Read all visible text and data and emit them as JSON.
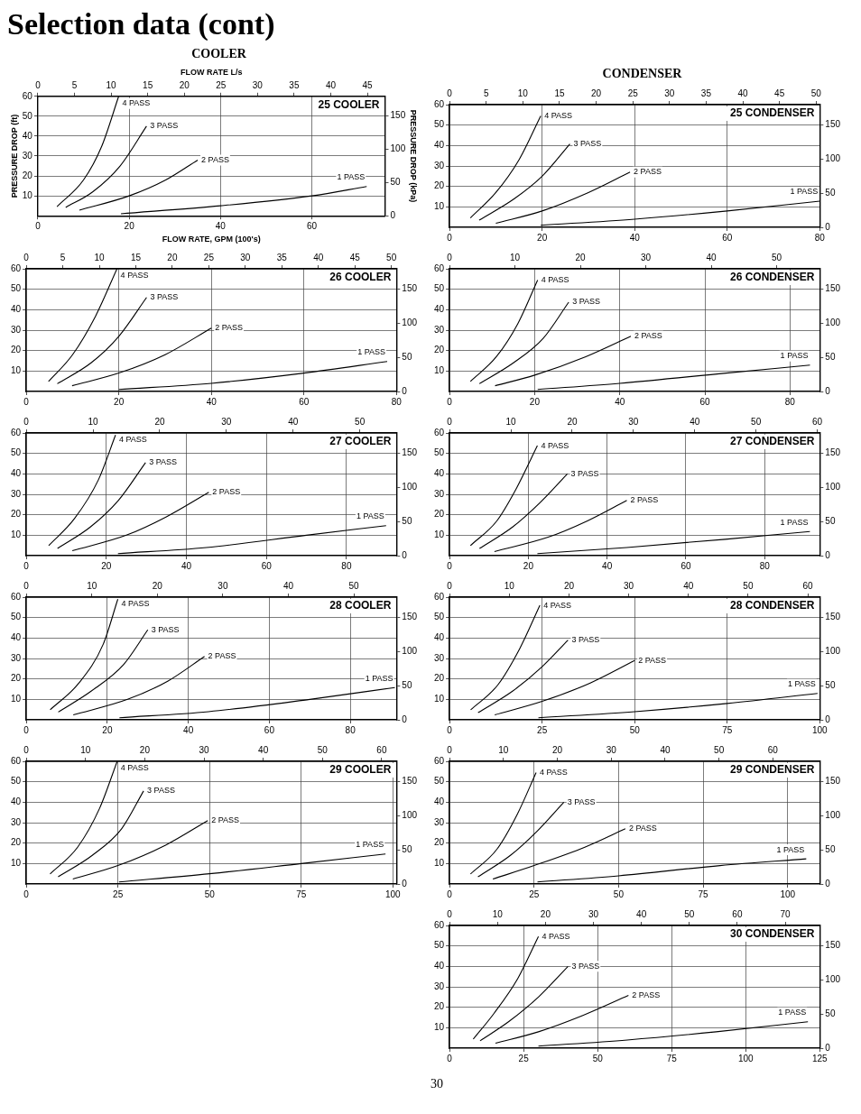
{
  "chart_data": [
    {
      "type": "line",
      "title": "25 COOLER",
      "annotations": [
        "Selection data (cont)",
        "COOLER"
      ],
      "xlabel": "FLOW RATE, GPM (100's)",
      "x2label": "FLOW RATE L/s",
      "ylabel": "PRESSURE DROP (ft)",
      "y2label": "PRESSURE DROP (kPa)",
      "xlim": [
        0,
        76
      ],
      "xticks": [
        0,
        20,
        40,
        60
      ],
      "x2lim": [
        0,
        47.4
      ],
      "x2ticks": [
        0,
        5,
        10,
        15,
        20,
        25,
        30,
        35,
        40,
        45
      ],
      "ylim": [
        0,
        60
      ],
      "yticks": [
        10,
        20,
        30,
        40,
        50,
        60
      ],
      "y2lim": [
        0,
        179
      ],
      "y2ticks": [
        0,
        50,
        100,
        150
      ],
      "grid": true,
      "series": [
        {
          "name": "4 PASS",
          "color": "#000000",
          "x": [
            4.2,
            10,
            14,
            17.7
          ],
          "values": [
            4.6,
            18,
            35,
            60
          ]
        },
        {
          "name": "3 PASS",
          "color": "#000000",
          "x": [
            6.1,
            12,
            18,
            23.8
          ],
          "values": [
            4.2,
            12,
            25,
            45
          ]
        },
        {
          "name": "2 PASS",
          "color": "#000000",
          "x": [
            9.1,
            20,
            28,
            35
          ],
          "values": [
            2.8,
            10,
            18,
            28
          ]
        },
        {
          "name": "1 PASS",
          "color": "#000000",
          "x": [
            18.2,
            40,
            60,
            72
          ],
          "values": [
            1,
            5,
            10,
            14.7
          ]
        }
      ]
    },
    {
      "type": "line",
      "title": "25 CONDENSER",
      "annotations": [
        "CONDENSER"
      ],
      "xlim": [
        0,
        80
      ],
      "xticks": [
        0,
        20,
        40,
        60,
        80
      ],
      "x2lim": [
        0,
        50.5
      ],
      "x2ticks": [
        0,
        5,
        10,
        15,
        20,
        25,
        30,
        35,
        40,
        45,
        50
      ],
      "ylim": [
        0,
        60
      ],
      "yticks": [
        10,
        20,
        30,
        40,
        50,
        60
      ],
      "y2lim": [
        0,
        179
      ],
      "y2ticks": [
        0,
        50,
        100,
        150
      ],
      "grid": true,
      "series": [
        {
          "name": "4 PASS",
          "color": "#000000",
          "x": [
            4.5,
            10,
            15,
            19.7
          ],
          "values": [
            4.6,
            17,
            33,
            54.5
          ]
        },
        {
          "name": "3 PASS",
          "color": "#000000",
          "x": [
            6.4,
            14,
            20,
            26
          ],
          "values": [
            3.5,
            14,
            25,
            40.8
          ]
        },
        {
          "name": "2 PASS",
          "color": "#000000",
          "x": [
            10,
            20,
            30,
            39
          ],
          "values": [
            2,
            8,
            17,
            27
          ]
        },
        {
          "name": "1 PASS",
          "color": "#000000",
          "x": [
            19.7,
            40,
            60,
            80
          ],
          "values": [
            1,
            4,
            8,
            12.8
          ]
        }
      ]
    },
    {
      "type": "line",
      "title": "26 COOLER",
      "xlim": [
        0,
        80
      ],
      "xticks": [
        0,
        20,
        40,
        60,
        80
      ],
      "x2lim": [
        0,
        50.7
      ],
      "x2ticks": [
        0,
        5,
        10,
        15,
        20,
        25,
        30,
        35,
        40,
        45,
        50
      ],
      "ylim": [
        0,
        60
      ],
      "yticks": [
        10,
        20,
        30,
        40,
        50,
        60
      ],
      "y2lim": [
        0,
        179
      ],
      "y2ticks": [
        0,
        50,
        100,
        150
      ],
      "grid": true,
      "series": [
        {
          "name": "4 PASS",
          "color": "#000000",
          "x": [
            4.8,
            10,
            15,
            19.6
          ],
          "values": [
            4.9,
            18,
            37,
            60
          ]
        },
        {
          "name": "3 PASS",
          "color": "#000000",
          "x": [
            6.7,
            14,
            20,
            26
          ],
          "values": [
            3.8,
            14,
            27,
            46
          ]
        },
        {
          "name": "2 PASS",
          "color": "#000000",
          "x": [
            9.9,
            20,
            30,
            40
          ],
          "values": [
            2.8,
            9,
            18,
            31
          ]
        },
        {
          "name": "1 PASS",
          "color": "#000000",
          "x": [
            20,
            40,
            60,
            78
          ],
          "values": [
            1,
            4,
            9,
            14.7
          ]
        }
      ]
    },
    {
      "type": "line",
      "title": "26 CONDENSER",
      "xlim": [
        0,
        87
      ],
      "xticks": [
        0,
        20,
        40,
        60,
        80
      ],
      "x2lim": [
        0,
        56.6
      ],
      "x2ticks": [
        0,
        10,
        20,
        30,
        40,
        50
      ],
      "ylim": [
        0,
        60
      ],
      "yticks": [
        10,
        20,
        30,
        40,
        50,
        60
      ],
      "y2lim": [
        0,
        179
      ],
      "y2ticks": [
        0,
        50,
        100,
        150
      ],
      "grid": true,
      "series": [
        {
          "name": "4 PASS",
          "color": "#000000",
          "x": [
            4.9,
            11,
            16,
            20.7
          ],
          "values": [
            4.9,
            17,
            33,
            54.5
          ]
        },
        {
          "name": "3 PASS",
          "color": "#000000",
          "x": [
            7,
            15,
            22,
            28
          ],
          "values": [
            3.8,
            14,
            26,
            43.7
          ]
        },
        {
          "name": "2 PASS",
          "color": "#000000",
          "x": [
            10.7,
            20,
            32,
            42.6
          ],
          "values": [
            2.8,
            8,
            17,
            27
          ]
        },
        {
          "name": "1 PASS",
          "color": "#000000",
          "x": [
            20.7,
            40,
            65,
            84.7
          ],
          "values": [
            1,
            4,
            9,
            12.9
          ]
        }
      ]
    },
    {
      "type": "line",
      "title": "27 COOLER",
      "xlim": [
        0,
        92.5
      ],
      "xticks": [
        0,
        20,
        40,
        60,
        80
      ],
      "x2lim": [
        0,
        55.5
      ],
      "x2ticks": [
        0,
        10,
        20,
        30,
        40,
        50
      ],
      "ylim": [
        0,
        60
      ],
      "yticks": [
        10,
        20,
        30,
        40,
        50,
        60
      ],
      "y2lim": [
        0,
        179
      ],
      "y2ticks": [
        0,
        50,
        100,
        150
      ],
      "grid": true,
      "series": [
        {
          "name": "4 PASS",
          "color": "#000000",
          "x": [
            5.6,
            12,
            18,
            22.3
          ],
          "values": [
            4.9,
            18,
            37,
            59
          ]
        },
        {
          "name": "3 PASS",
          "color": "#000000",
          "x": [
            7.8,
            16,
            23,
            29.8
          ],
          "values": [
            3.5,
            14,
            27,
            45.5
          ]
        },
        {
          "name": "2 PASS",
          "color": "#000000",
          "x": [
            11.5,
            25,
            35,
            45.6
          ],
          "values": [
            2.4,
            10,
            19,
            31
          ]
        },
        {
          "name": "1 PASS",
          "color": "#000000",
          "x": [
            22.9,
            45,
            70,
            89.9
          ],
          "values": [
            1,
            4,
            10,
            14.7
          ]
        }
      ]
    },
    {
      "type": "line",
      "title": "27 CONDENSER",
      "xlim": [
        0,
        94
      ],
      "xticks": [
        0,
        20,
        40,
        60,
        80
      ],
      "x2lim": [
        0,
        60.4
      ],
      "x2ticks": [
        0,
        10,
        20,
        30,
        40,
        50,
        60
      ],
      "ylim": [
        0,
        60
      ],
      "yticks": [
        10,
        20,
        30,
        40,
        50,
        60
      ],
      "y2lim": [
        0,
        179
      ],
      "y2ticks": [
        0,
        50,
        100,
        150
      ],
      "grid": true,
      "series": [
        {
          "name": "4 PASS",
          "color": "#000000",
          "x": [
            5.3,
            12,
            17,
            22.3
          ],
          "values": [
            4.9,
            17,
            33,
            53.8
          ]
        },
        {
          "name": "3 PASS",
          "color": "#000000",
          "x": [
            7.6,
            16,
            23,
            29.9
          ],
          "values": [
            3.5,
            14,
            26,
            40
          ]
        },
        {
          "name": "2 PASS",
          "color": "#000000",
          "x": [
            11.4,
            25,
            35,
            45
          ],
          "values": [
            2,
            9,
            17,
            27
          ]
        },
        {
          "name": "1 PASS",
          "color": "#000000",
          "x": [
            22.3,
            45,
            70,
            91.5
          ],
          "values": [
            1,
            4,
            8,
            11.8
          ]
        }
      ]
    },
    {
      "type": "line",
      "title": "28 COOLER",
      "xlim": [
        0,
        91.4
      ],
      "xticks": [
        0,
        20,
        40,
        60,
        80
      ],
      "x2lim": [
        0,
        56.5
      ],
      "x2ticks": [
        0,
        10,
        20,
        30,
        40,
        50
      ],
      "ylim": [
        0,
        60
      ],
      "yticks": [
        10,
        20,
        30,
        40,
        50,
        60
      ],
      "y2lim": [
        0,
        179
      ],
      "y2ticks": [
        0,
        50,
        100,
        150
      ],
      "grid": true,
      "series": [
        {
          "name": "4 PASS",
          "color": "#000000",
          "x": [
            5.9,
            13,
            19,
            22.6
          ],
          "values": [
            4.9,
            18,
            37,
            59
          ]
        },
        {
          "name": "3 PASS",
          "color": "#000000",
          "x": [
            7.9,
            16,
            24,
            30
          ],
          "values": [
            3.8,
            14,
            27,
            44
          ]
        },
        {
          "name": "2 PASS",
          "color": "#000000",
          "x": [
            11.6,
            25,
            35,
            44
          ],
          "values": [
            2.4,
            10,
            19,
            31
          ]
        },
        {
          "name": "1 PASS",
          "color": "#000000",
          "x": [
            23,
            45,
            70,
            91
          ],
          "values": [
            1,
            4,
            10,
            15.8
          ]
        }
      ]
    },
    {
      "type": "line",
      "title": "28 CONDENSER",
      "xlim": [
        0,
        100
      ],
      "xticks": [
        0,
        25,
        50,
        75,
        100
      ],
      "x2lim": [
        0,
        62
      ],
      "x2ticks": [
        0,
        10,
        20,
        30,
        40,
        50,
        60
      ],
      "ylim": [
        0,
        60
      ],
      "yticks": [
        10,
        20,
        30,
        40,
        50,
        60
      ],
      "y2lim": [
        0,
        179
      ],
      "y2ticks": [
        0,
        50,
        100,
        150
      ],
      "grid": true,
      "series": [
        {
          "name": "4 PASS",
          "color": "#000000",
          "x": [
            5.7,
            13,
            19,
            24.4
          ],
          "values": [
            4.9,
            17,
            35,
            56
          ]
        },
        {
          "name": "3 PASS",
          "color": "#000000",
          "x": [
            7.7,
            17,
            25,
            32
          ],
          "values": [
            3.5,
            14,
            26,
            39
          ]
        },
        {
          "name": "2 PASS",
          "color": "#000000",
          "x": [
            12.2,
            25,
            38,
            50
          ],
          "values": [
            2.4,
            9,
            18,
            29
          ]
        },
        {
          "name": "1 PASS",
          "color": "#000000",
          "x": [
            24,
            50,
            75,
            99.4
          ],
          "values": [
            1,
            4,
            8,
            12.9
          ]
        }
      ]
    },
    {
      "type": "line",
      "title": "29 COOLER",
      "xlim": [
        0,
        101
      ],
      "xticks": [
        0,
        25,
        50,
        75,
        100
      ],
      "x2lim": [
        0,
        62.5
      ],
      "x2ticks": [
        0,
        10,
        20,
        30,
        40,
        50,
        60
      ],
      "ylim": [
        0,
        60
      ],
      "yticks": [
        10,
        20,
        30,
        40,
        50,
        60
      ],
      "y2lim": [
        0,
        179
      ],
      "y2ticks": [
        0,
        50,
        100,
        150
      ],
      "grid": true,
      "series": [
        {
          "name": "4 PASS",
          "color": "#000000",
          "x": [
            6.5,
            14,
            20,
            24.8
          ],
          "values": [
            4.9,
            18,
            37,
            60
          ]
        },
        {
          "name": "3 PASS",
          "color": "#000000",
          "x": [
            8.7,
            18,
            26,
            32
          ],
          "values": [
            3.5,
            14,
            27,
            45.5
          ]
        },
        {
          "name": "2 PASS",
          "color": "#000000",
          "x": [
            12.7,
            25,
            38,
            49.5
          ],
          "values": [
            2.4,
            9,
            19,
            31
          ]
        },
        {
          "name": "1 PASS",
          "color": "#000000",
          "x": [
            25.3,
            50,
            75,
            98
          ],
          "values": [
            1,
            5,
            10,
            14.7
          ]
        }
      ]
    },
    {
      "type": "line",
      "title": "29 CONDENSER",
      "xlim": [
        0,
        109.5
      ],
      "xticks": [
        0,
        25,
        50,
        75,
        100
      ],
      "x2lim": [
        0,
        68.7
      ],
      "x2ticks": [
        0,
        10,
        20,
        30,
        40,
        50,
        60
      ],
      "ylim": [
        0,
        60
      ],
      "yticks": [
        10,
        20,
        30,
        40,
        50,
        60
      ],
      "y2lim": [
        0,
        179
      ],
      "y2ticks": [
        0,
        50,
        100,
        150
      ],
      "grid": true,
      "series": [
        {
          "name": "4 PASS",
          "color": "#000000",
          "x": [
            6.2,
            14,
            20,
            25.6
          ],
          "values": [
            4.9,
            17,
            34,
            54.5
          ]
        },
        {
          "name": "3 PASS",
          "color": "#000000",
          "x": [
            8.4,
            18,
            26,
            33.8
          ],
          "values": [
            3.5,
            14,
            26,
            40
          ]
        },
        {
          "name": "2 PASS",
          "color": "#000000",
          "x": [
            12.8,
            25,
            40,
            52
          ],
          "values": [
            2.4,
            9,
            18,
            27
          ]
        },
        {
          "name": "1 PASS",
          "color": "#000000",
          "x": [
            26,
            50,
            80,
            105.5
          ],
          "values": [
            1,
            4,
            9,
            12.3
          ]
        }
      ]
    },
    {
      "type": "line",
      "title": "30 CONDENSER",
      "annotations": [
        "30"
      ],
      "xlim": [
        0,
        125
      ],
      "xticks": [
        0,
        25,
        50,
        75,
        100,
        125
      ],
      "x2lim": [
        0,
        77.2
      ],
      "x2ticks": [
        0,
        10,
        20,
        30,
        40,
        50,
        60,
        70
      ],
      "ylim": [
        0,
        60
      ],
      "yticks": [
        10,
        20,
        30,
        40,
        50,
        60
      ],
      "y2lim": [
        0,
        179
      ],
      "y2ticks": [
        0,
        50,
        100,
        150
      ],
      "grid": true,
      "series": [
        {
          "name": "4 PASS",
          "color": "#000000",
          "x": [
            8,
            15,
            23,
            30
          ],
          "values": [
            4.4,
            17,
            34,
            54.6
          ]
        },
        {
          "name": "3 PASS",
          "color": "#000000",
          "x": [
            10.3,
            20,
            30,
            40
          ],
          "values": [
            3.6,
            13,
            25,
            40
          ]
        },
        {
          "name": "2 PASS",
          "color": "#000000",
          "x": [
            15.5,
            30,
            45,
            60.4
          ],
          "values": [
            2.4,
            8,
            16,
            25.8
          ]
        },
        {
          "name": "1 PASS",
          "color": "#000000",
          "x": [
            30,
            60,
            90,
            121
          ],
          "values": [
            1,
            4,
            8,
            12.9
          ]
        }
      ]
    }
  ]
}
